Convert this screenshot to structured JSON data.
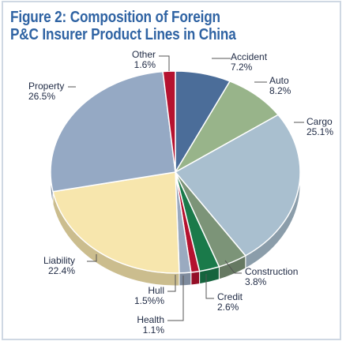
{
  "title_lines": [
    "Figure 2: Composition of Foreign",
    "P&C Insurer Product Lines in China"
  ],
  "colors": {
    "title": "#2f63a3",
    "label_text": "#1f2a44",
    "leader": "#555555"
  },
  "chart_data": {
    "type": "pie",
    "style": "3d",
    "title": "Figure 2: Composition of Foreign P&C Insurer Product Lines in China",
    "slices": [
      {
        "name": "Accident",
        "value": 7.2,
        "value_label": "7.2%",
        "color": "#4b6d99",
        "label_anchor": "top-right"
      },
      {
        "name": "Auto",
        "value": 8.2,
        "value_label": "8.2%",
        "color": "#98b48a",
        "label_anchor": "top-right"
      },
      {
        "name": "Cargo",
        "value": 25.1,
        "value_label": "25.1%",
        "color": "#a9bfcf",
        "label_anchor": "right"
      },
      {
        "name": "Construction",
        "value": 3.8,
        "value_label": "3.8%",
        "color": "#7c9478",
        "label_anchor": "bottom-right"
      },
      {
        "name": "Credit",
        "value": 2.6,
        "value_label": "2.6%",
        "color": "#1a7a4a",
        "label_anchor": "bottom"
      },
      {
        "name": "Health",
        "value": 1.1,
        "value_label": "1.1%",
        "color": "#b5122f",
        "label_anchor": "bottom"
      },
      {
        "name": "Hull",
        "value": 1.5,
        "value_label": "1.5%%",
        "color": "#9aaac0",
        "label_anchor": "bottom-left"
      },
      {
        "name": "Liability",
        "value": 22.4,
        "value_label": "22.4%",
        "color": "#f7e6ad",
        "label_anchor": "left"
      },
      {
        "name": "Property",
        "value": 26.5,
        "value_label": "26.5%",
        "color": "#95a9c4",
        "label_anchor": "top-left"
      },
      {
        "name": "Other",
        "value": 1.6,
        "value_label": "1.6%",
        "color": "#b5122f",
        "label_anchor": "top"
      }
    ]
  }
}
